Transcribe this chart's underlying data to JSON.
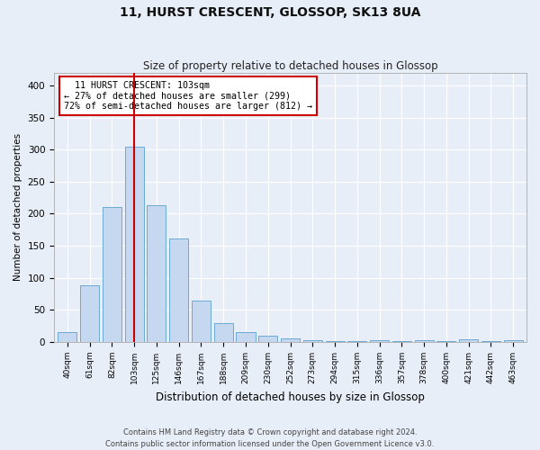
{
  "title": "11, HURST CRESCENT, GLOSSOP, SK13 8UA",
  "subtitle": "Size of property relative to detached houses in Glossop",
  "xlabel": "Distribution of detached houses by size in Glossop",
  "ylabel": "Number of detached properties",
  "bar_color": "#c5d8ef",
  "bar_edge_color": "#6aaad4",
  "background_color": "#e8eef8",
  "grid_color": "#ffffff",
  "categories": [
    "40sqm",
    "61sqm",
    "82sqm",
    "103sqm",
    "125sqm",
    "146sqm",
    "167sqm",
    "188sqm",
    "209sqm",
    "230sqm",
    "252sqm",
    "273sqm",
    "294sqm",
    "315sqm",
    "336sqm",
    "357sqm",
    "378sqm",
    "400sqm",
    "421sqm",
    "442sqm",
    "463sqm"
  ],
  "values": [
    15,
    88,
    211,
    305,
    214,
    161,
    64,
    30,
    16,
    10,
    6,
    3,
    2,
    1,
    3,
    1,
    3,
    1,
    5,
    1,
    3
  ],
  "property_bin_index": 3,
  "vline_color": "#cc0000",
  "annotation_text": "  11 HURST CRESCENT: 103sqm\n← 27% of detached houses are smaller (299)\n72% of semi-detached houses are larger (812) →",
  "annotation_box_color": "#ffffff",
  "annotation_box_edge_color": "#cc0000",
  "ylim": [
    0,
    420
  ],
  "yticks": [
    0,
    50,
    100,
    150,
    200,
    250,
    300,
    350,
    400
  ],
  "footer_text": "Contains HM Land Registry data © Crown copyright and database right 2024.\nContains public sector information licensed under the Open Government Licence v3.0.",
  "figsize": [
    6.0,
    5.0
  ],
  "dpi": 100
}
